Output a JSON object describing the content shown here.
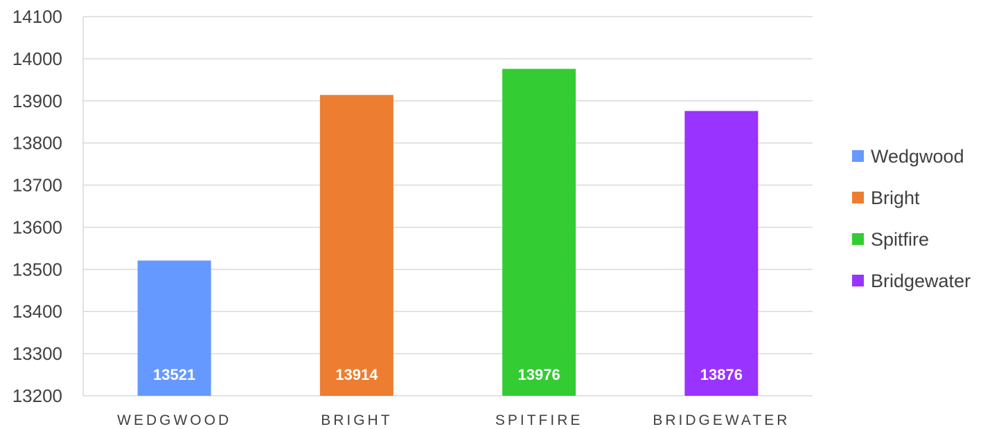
{
  "chart_data": {
    "type": "bar",
    "categories": [
      "WEDGWOOD",
      "BRIGHT",
      "SPITFIRE",
      "BRIDGEWATER"
    ],
    "values": [
      13521,
      13914,
      13976,
      13876
    ],
    "data_labels": [
      "13521",
      "13914",
      "13976",
      "13876"
    ],
    "colors": [
      "#6699ff",
      "#ed7d31",
      "#33cc33",
      "#9933ff"
    ],
    "legend": [
      "Wedgwood",
      "Bright",
      "Spitfire",
      "Bridgewater"
    ],
    "legend_position": "right",
    "ylim": [
      13200,
      14100
    ],
    "yticks": [
      "13200",
      "13300",
      "13400",
      "13500",
      "13600",
      "13700",
      "13800",
      "13900",
      "14000",
      "14100"
    ],
    "grid": true,
    "title": "",
    "xlabel": "",
    "ylabel": ""
  }
}
